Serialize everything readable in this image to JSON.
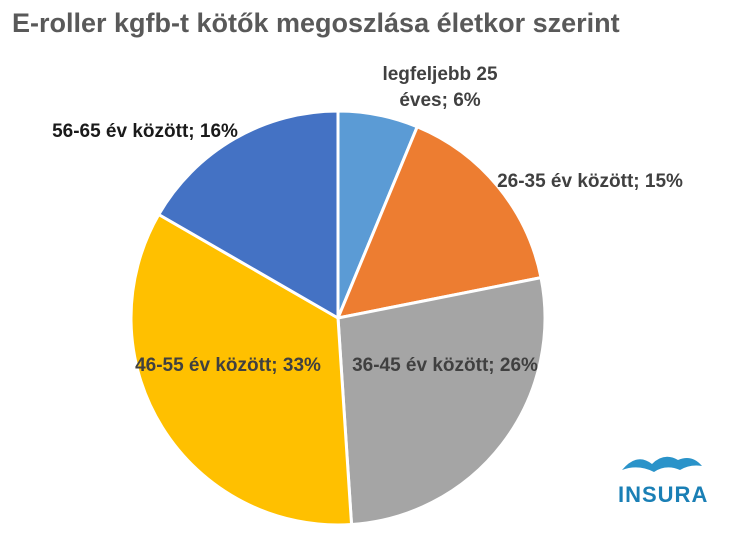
{
  "chart_data": {
    "type": "pie",
    "title": "E-roller kgfb-t kötők megoszlása életkor szerint",
    "categories": [
      "legfeljebb 25 éves",
      "26-35 év között",
      "36-45 év között",
      "46-55 év között",
      "56-65 év között"
    ],
    "values": [
      6,
      15,
      26,
      33,
      16
    ],
    "value_labels": [
      "6%",
      "15%",
      "26%",
      "33%",
      "16%"
    ],
    "colors": [
      "#5b9bd5",
      "#ed7d31",
      "#a5a5a5",
      "#ffc000",
      "#4472c4"
    ]
  },
  "logo": "INSURA"
}
